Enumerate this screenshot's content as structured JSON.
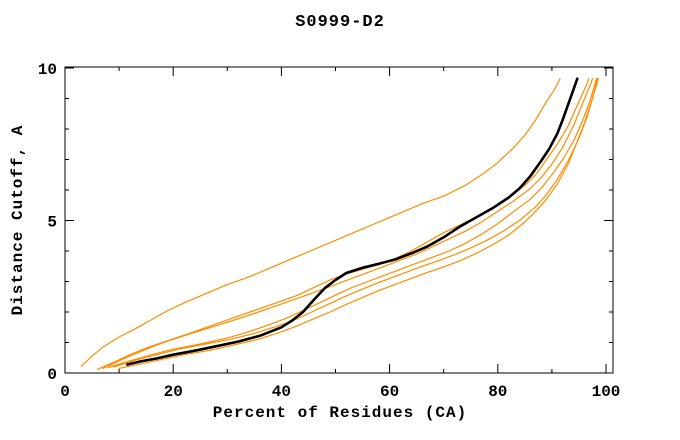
{
  "chart_data": {
    "type": "line",
    "title": "S0999-D2",
    "xlabel": "Percent of Residues (CA)",
    "ylabel": "Distance Cutoff, A",
    "xlim": [
      0,
      101.3
    ],
    "ylim": [
      0,
      10.03
    ],
    "x_major_ticks": [
      0,
      20,
      40,
      60,
      80,
      100
    ],
    "x_minor_ticks": [
      10,
      30,
      50,
      70,
      90
    ],
    "y_major_ticks": [
      0,
      5,
      10
    ],
    "y_minor_ticks": [
      1,
      2,
      3,
      4,
      6,
      7,
      8,
      9
    ],
    "grid": false,
    "legend": "none",
    "colors": {
      "model_curve": "#ff8c00",
      "reference_curve": "#000000",
      "axis": "#000000",
      "background": "#ffffff"
    },
    "series": [
      {
        "name": "orange-curve-1-outlier",
        "color": "#ff8c00",
        "width": 1.2,
        "points": [
          [
            3,
            0.22
          ],
          [
            5,
            0.55
          ],
          [
            7,
            0.85
          ],
          [
            10,
            1.18
          ],
          [
            13,
            1.45
          ],
          [
            16,
            1.75
          ],
          [
            19,
            2.05
          ],
          [
            22,
            2.3
          ],
          [
            26,
            2.6
          ],
          [
            30,
            2.9
          ],
          [
            34,
            3.15
          ],
          [
            38,
            3.45
          ],
          [
            42,
            3.75
          ],
          [
            46,
            4.05
          ],
          [
            50,
            4.35
          ],
          [
            54,
            4.65
          ],
          [
            58,
            4.95
          ],
          [
            62,
            5.25
          ],
          [
            66,
            5.55
          ],
          [
            70,
            5.8
          ],
          [
            74,
            6.15
          ],
          [
            77,
            6.5
          ],
          [
            80,
            6.9
          ],
          [
            83,
            7.4
          ],
          [
            85,
            7.8
          ],
          [
            87,
            8.3
          ],
          [
            89,
            8.9
          ],
          [
            90.5,
            9.3
          ],
          [
            91.5,
            9.65
          ]
        ]
      },
      {
        "name": "orange-curve-2",
        "color": "#ff8c00",
        "width": 1.2,
        "points": [
          [
            6,
            0.12
          ],
          [
            9,
            0.35
          ],
          [
            12,
            0.6
          ],
          [
            15,
            0.82
          ],
          [
            19,
            1.06
          ],
          [
            23,
            1.3
          ],
          [
            27,
            1.55
          ],
          [
            31,
            1.8
          ],
          [
            35,
            2.05
          ],
          [
            39,
            2.3
          ],
          [
            43,
            2.55
          ],
          [
            46,
            2.8
          ],
          [
            49,
            3.05
          ],
          [
            52,
            3.25
          ],
          [
            55,
            3.4
          ],
          [
            58,
            3.55
          ],
          [
            61,
            3.75
          ],
          [
            64,
            4.0
          ],
          [
            67,
            4.3
          ],
          [
            70,
            4.6
          ],
          [
            73,
            4.85
          ],
          [
            76,
            5.1
          ],
          [
            79,
            5.4
          ],
          [
            82,
            5.75
          ],
          [
            85,
            6.15
          ],
          [
            87,
            6.5
          ],
          [
            89,
            7.0
          ],
          [
            91,
            7.5
          ],
          [
            93,
            8.1
          ],
          [
            95,
            8.9
          ],
          [
            96.3,
            9.4
          ],
          [
            96.8,
            9.65
          ]
        ]
      },
      {
        "name": "orange-curve-3",
        "color": "#ff8c00",
        "width": 1.2,
        "points": [
          [
            7,
            0.15
          ],
          [
            10,
            0.4
          ],
          [
            13,
            0.63
          ],
          [
            16,
            0.85
          ],
          [
            19,
            1.05
          ],
          [
            23,
            1.28
          ],
          [
            27,
            1.5
          ],
          [
            31,
            1.72
          ],
          [
            35,
            1.95
          ],
          [
            39,
            2.2
          ],
          [
            43,
            2.45
          ],
          [
            47,
            2.7
          ],
          [
            50,
            2.9
          ],
          [
            53,
            3.1
          ],
          [
            56,
            3.3
          ],
          [
            59,
            3.5
          ],
          [
            62,
            3.7
          ],
          [
            65,
            3.9
          ],
          [
            68,
            4.15
          ],
          [
            71,
            4.4
          ],
          [
            74,
            4.65
          ],
          [
            77,
            4.95
          ],
          [
            80,
            5.3
          ],
          [
            83,
            5.65
          ],
          [
            86,
            6.05
          ],
          [
            88,
            6.4
          ],
          [
            90,
            6.85
          ],
          [
            92,
            7.4
          ],
          [
            94,
            8.1
          ],
          [
            95.8,
            8.9
          ],
          [
            97.2,
            9.5
          ],
          [
            97.5,
            9.65
          ]
        ]
      },
      {
        "name": "orange-curve-4",
        "color": "#ff8c00",
        "width": 1.2,
        "points": [
          [
            8,
            0.18
          ],
          [
            12,
            0.4
          ],
          [
            16,
            0.6
          ],
          [
            20,
            0.78
          ],
          [
            25,
            0.95
          ],
          [
            30,
            1.15
          ],
          [
            34,
            1.35
          ],
          [
            38,
            1.6
          ],
          [
            41,
            1.8
          ],
          [
            44,
            2.05
          ],
          [
            47,
            2.3
          ],
          [
            50,
            2.55
          ],
          [
            53,
            2.8
          ],
          [
            56,
            3.0
          ],
          [
            59,
            3.2
          ],
          [
            62,
            3.4
          ],
          [
            65,
            3.6
          ],
          [
            68,
            3.8
          ],
          [
            71,
            4.0
          ],
          [
            74,
            4.25
          ],
          [
            77,
            4.55
          ],
          [
            80,
            4.9
          ],
          [
            83,
            5.3
          ],
          [
            86,
            5.7
          ],
          [
            88,
            6.05
          ],
          [
            90,
            6.5
          ],
          [
            92,
            7.0
          ],
          [
            94,
            7.6
          ],
          [
            95.5,
            8.2
          ],
          [
            97,
            8.9
          ],
          [
            98,
            9.5
          ],
          [
            98.2,
            9.65
          ]
        ]
      },
      {
        "name": "orange-curve-5",
        "color": "#ff8c00",
        "width": 1.2,
        "points": [
          [
            9,
            0.2
          ],
          [
            13,
            0.42
          ],
          [
            17,
            0.6
          ],
          [
            21,
            0.78
          ],
          [
            26,
            0.95
          ],
          [
            31,
            1.12
          ],
          [
            35,
            1.3
          ],
          [
            39,
            1.52
          ],
          [
            42,
            1.7
          ],
          [
            45,
            1.95
          ],
          [
            48,
            2.2
          ],
          [
            51,
            2.45
          ],
          [
            54,
            2.68
          ],
          [
            57,
            2.9
          ],
          [
            60,
            3.1
          ],
          [
            63,
            3.3
          ],
          [
            66,
            3.5
          ],
          [
            69,
            3.68
          ],
          [
            72,
            3.88
          ],
          [
            75,
            4.1
          ],
          [
            78,
            4.35
          ],
          [
            81,
            4.65
          ],
          [
            84,
            5.0
          ],
          [
            87,
            5.45
          ],
          [
            89,
            5.85
          ],
          [
            91,
            6.35
          ],
          [
            93,
            6.95
          ],
          [
            95,
            7.7
          ],
          [
            96.5,
            8.4
          ],
          [
            97.8,
            9.2
          ],
          [
            98.4,
            9.65
          ]
        ]
      },
      {
        "name": "orange-curve-6",
        "color": "#ff8c00",
        "width": 1.2,
        "points": [
          [
            10,
            0.15
          ],
          [
            14,
            0.3
          ],
          [
            18,
            0.45
          ],
          [
            22,
            0.6
          ],
          [
            27,
            0.75
          ],
          [
            32,
            0.95
          ],
          [
            36,
            1.12
          ],
          [
            40,
            1.35
          ],
          [
            43,
            1.55
          ],
          [
            46,
            1.78
          ],
          [
            49,
            2.0
          ],
          [
            52,
            2.25
          ],
          [
            55,
            2.48
          ],
          [
            58,
            2.7
          ],
          [
            61,
            2.9
          ],
          [
            64,
            3.1
          ],
          [
            67,
            3.3
          ],
          [
            70,
            3.48
          ],
          [
            73,
            3.68
          ],
          [
            76,
            3.92
          ],
          [
            79,
            4.2
          ],
          [
            82,
            4.52
          ],
          [
            85,
            4.95
          ],
          [
            87,
            5.3
          ],
          [
            89,
            5.7
          ],
          [
            91,
            6.2
          ],
          [
            93,
            6.85
          ],
          [
            94.5,
            7.5
          ],
          [
            96,
            8.2
          ],
          [
            97.5,
            9.0
          ],
          [
            98.6,
            9.65
          ]
        ]
      },
      {
        "name": "black-curve-main",
        "color": "#000000",
        "width": 2.6,
        "points": [
          [
            11.5,
            0.28
          ],
          [
            14,
            0.38
          ],
          [
            17,
            0.48
          ],
          [
            20,
            0.6
          ],
          [
            24,
            0.73
          ],
          [
            28,
            0.88
          ],
          [
            32,
            1.03
          ],
          [
            36,
            1.22
          ],
          [
            40,
            1.5
          ],
          [
            42,
            1.72
          ],
          [
            44,
            2.0
          ],
          [
            46,
            2.4
          ],
          [
            48,
            2.78
          ],
          [
            50,
            3.05
          ],
          [
            52,
            3.28
          ],
          [
            55,
            3.45
          ],
          [
            58,
            3.58
          ],
          [
            61,
            3.72
          ],
          [
            64,
            3.92
          ],
          [
            67,
            4.15
          ],
          [
            70,
            4.45
          ],
          [
            73,
            4.8
          ],
          [
            76,
            5.1
          ],
          [
            79,
            5.4
          ],
          [
            82,
            5.75
          ],
          [
            84,
            6.05
          ],
          [
            86,
            6.45
          ],
          [
            88,
            6.95
          ],
          [
            89.5,
            7.35
          ],
          [
            91,
            7.85
          ],
          [
            92,
            8.3
          ],
          [
            93,
            8.8
          ],
          [
            94,
            9.3
          ],
          [
            94.7,
            9.65
          ]
        ]
      }
    ]
  }
}
